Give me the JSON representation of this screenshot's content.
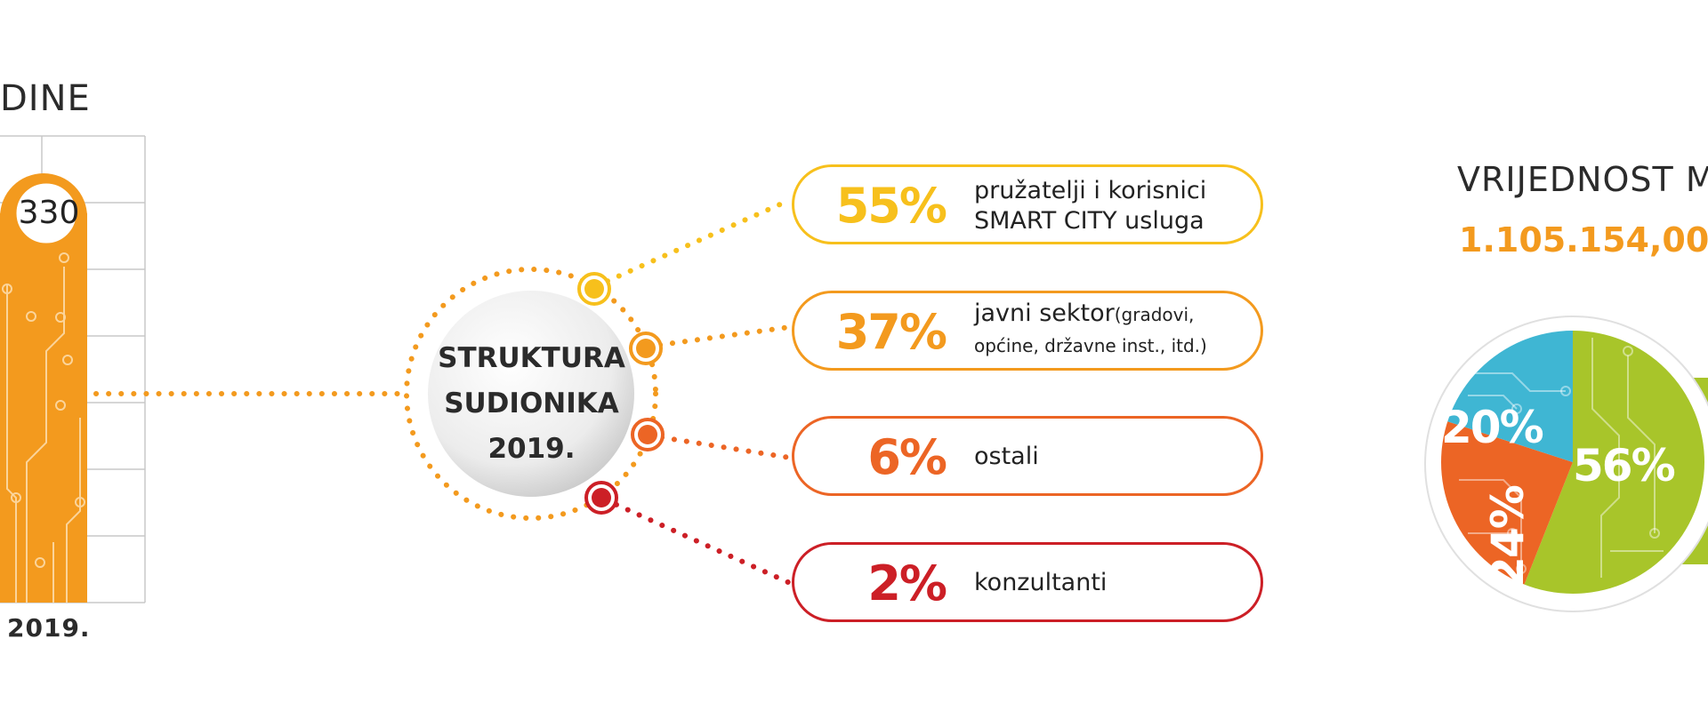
{
  "left_title": "DINE",
  "bar": {
    "value": "330",
    "year": "2019."
  },
  "center": {
    "line1": "STRUKTURA",
    "line2": "SUDIONIKA",
    "line3": "2019."
  },
  "structure": [
    {
      "percent": "55%",
      "label1": "pružatelji i korisnici",
      "label2": "SMART CITY usluga",
      "label_note": "",
      "color": "#f7c01c"
    },
    {
      "percent": "37%",
      "label1": "javni sektor",
      "label_note": "(gradovi,",
      "label2": "općine, državne inst., itd.)",
      "color": "#f39a1e"
    },
    {
      "percent": "6%",
      "label1": "ostali",
      "label2": "",
      "label_note": "",
      "color": "#ec6525"
    },
    {
      "percent": "2%",
      "label1": "konzultanti",
      "label2": "",
      "label_note": "",
      "color": "#cc1f26"
    }
  ],
  "right": {
    "title": "VRIJEDNOST M",
    "value": "1.105.154,00"
  },
  "pie": {
    "labels": [
      "20%",
      "24%",
      "56%"
    ],
    "colors": [
      "#3fb6d3",
      "#ec6525",
      "#a8c52a"
    ]
  },
  "chart_data": [
    {
      "type": "bar",
      "categories": [
        "2019."
      ],
      "values": [
        330
      ]
    },
    {
      "type": "bar",
      "categories": [
        "pružatelji i korisnici SMART CITY usluga",
        "javni sektor (gradovi, općine, državne inst., itd.)",
        "ostali",
        "konzultanti"
      ],
      "values": [
        55,
        37,
        6,
        2
      ],
      "title": "STRUKTURA SUDIONIKA 2019."
    },
    {
      "type": "pie",
      "categories": [
        "",
        "",
        ""
      ],
      "values": [
        20,
        24,
        56
      ]
    }
  ]
}
